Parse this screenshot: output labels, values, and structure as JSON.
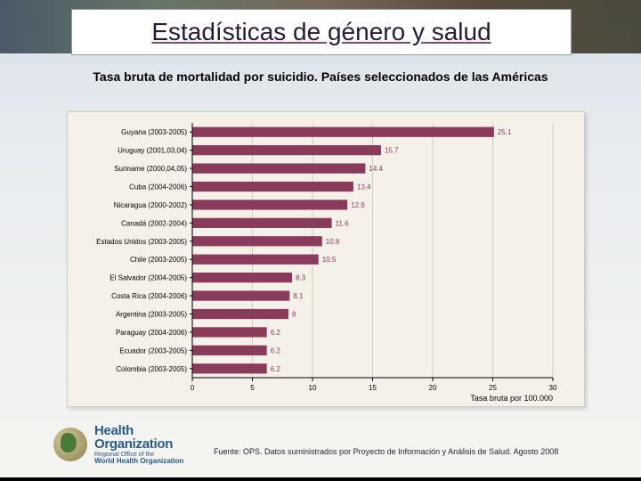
{
  "title": "Estadísticas de género y salud",
  "subtitle": "Tasa bruta de mortalidad por suicidio. Países seleccionados de las Américas",
  "source": "Fuente: OPS. Datos suministrados por Proyecto de Información y Análisis de Salud. Agosto 2008",
  "logo": {
    "line1": "Health",
    "line2": "Organization",
    "line3": "Regional Office of the",
    "line4": "World Health Organization"
  },
  "chart": {
    "type": "bar-horizontal",
    "background_color": "#f5f0e8",
    "plot_bg": "#f5f0e8",
    "axis_color": "#000000",
    "grid_color": "#b0a898",
    "bar_color": "#8a3a5a",
    "label_fontsize": 8,
    "value_fontsize": 8,
    "value_color": "#8a3a5a",
    "xlabel": "Tasa bruta por 100.000",
    "xlabel_fontsize": 9,
    "xlim": [
      0,
      30
    ],
    "xtick_step": 5,
    "xticks": [
      0,
      5,
      10,
      15,
      20,
      25,
      30
    ],
    "bar_height_ratio": 0.55,
    "categories": [
      "Guyana (2003-2005)",
      "Uruguay (2001,03,04)",
      "Suriname (2000,04,05)",
      "Cuba (2004-2006)",
      "Nicaragua (2000-2002)",
      "Canadá (2002-2004)",
      "Estados Unidos (2003-2005)",
      "Chile (2003-2005)",
      "El Salvador (2004-2005)",
      "Costa Rica (2004-2006)",
      "Argentina (2003-2005)",
      "Paraguay (2004-2006)",
      "Ecuador (2003-2005)",
      "Colombia (2003-2005)"
    ],
    "values": [
      25.1,
      15.7,
      14.4,
      13.4,
      12.9,
      11.6,
      10.8,
      10.5,
      8.3,
      8.1,
      8.0,
      6.2,
      6.2,
      6.2
    ]
  }
}
